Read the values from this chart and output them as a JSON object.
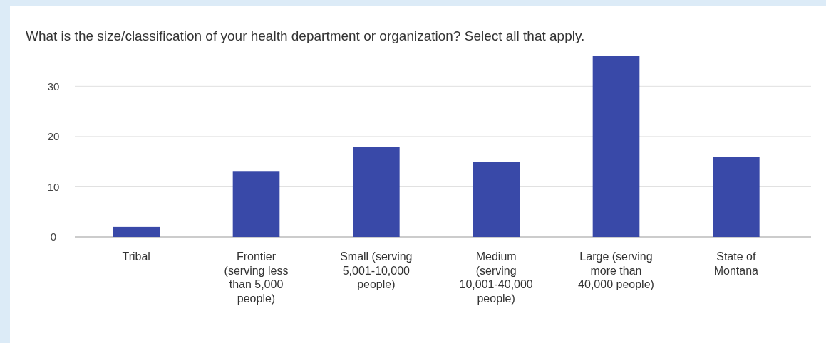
{
  "chart_data": {
    "type": "bar",
    "title": "What is the size/classification of your health department or organization? Select all that apply.",
    "categories": [
      "Tribal",
      "Frontier (serving less than 5,000 people)",
      "Small (serving 5,001-10,000 people)",
      "Medium (serving 10,001-40,000 people)",
      "Large (serving more than 40,000 people)",
      "State of Montana"
    ],
    "values": [
      2,
      13,
      18,
      15,
      36,
      16
    ],
    "color": "#3949a8",
    "ylim": [
      0,
      36
    ],
    "yticks": [
      0,
      10,
      20,
      30
    ],
    "grid": "y"
  }
}
